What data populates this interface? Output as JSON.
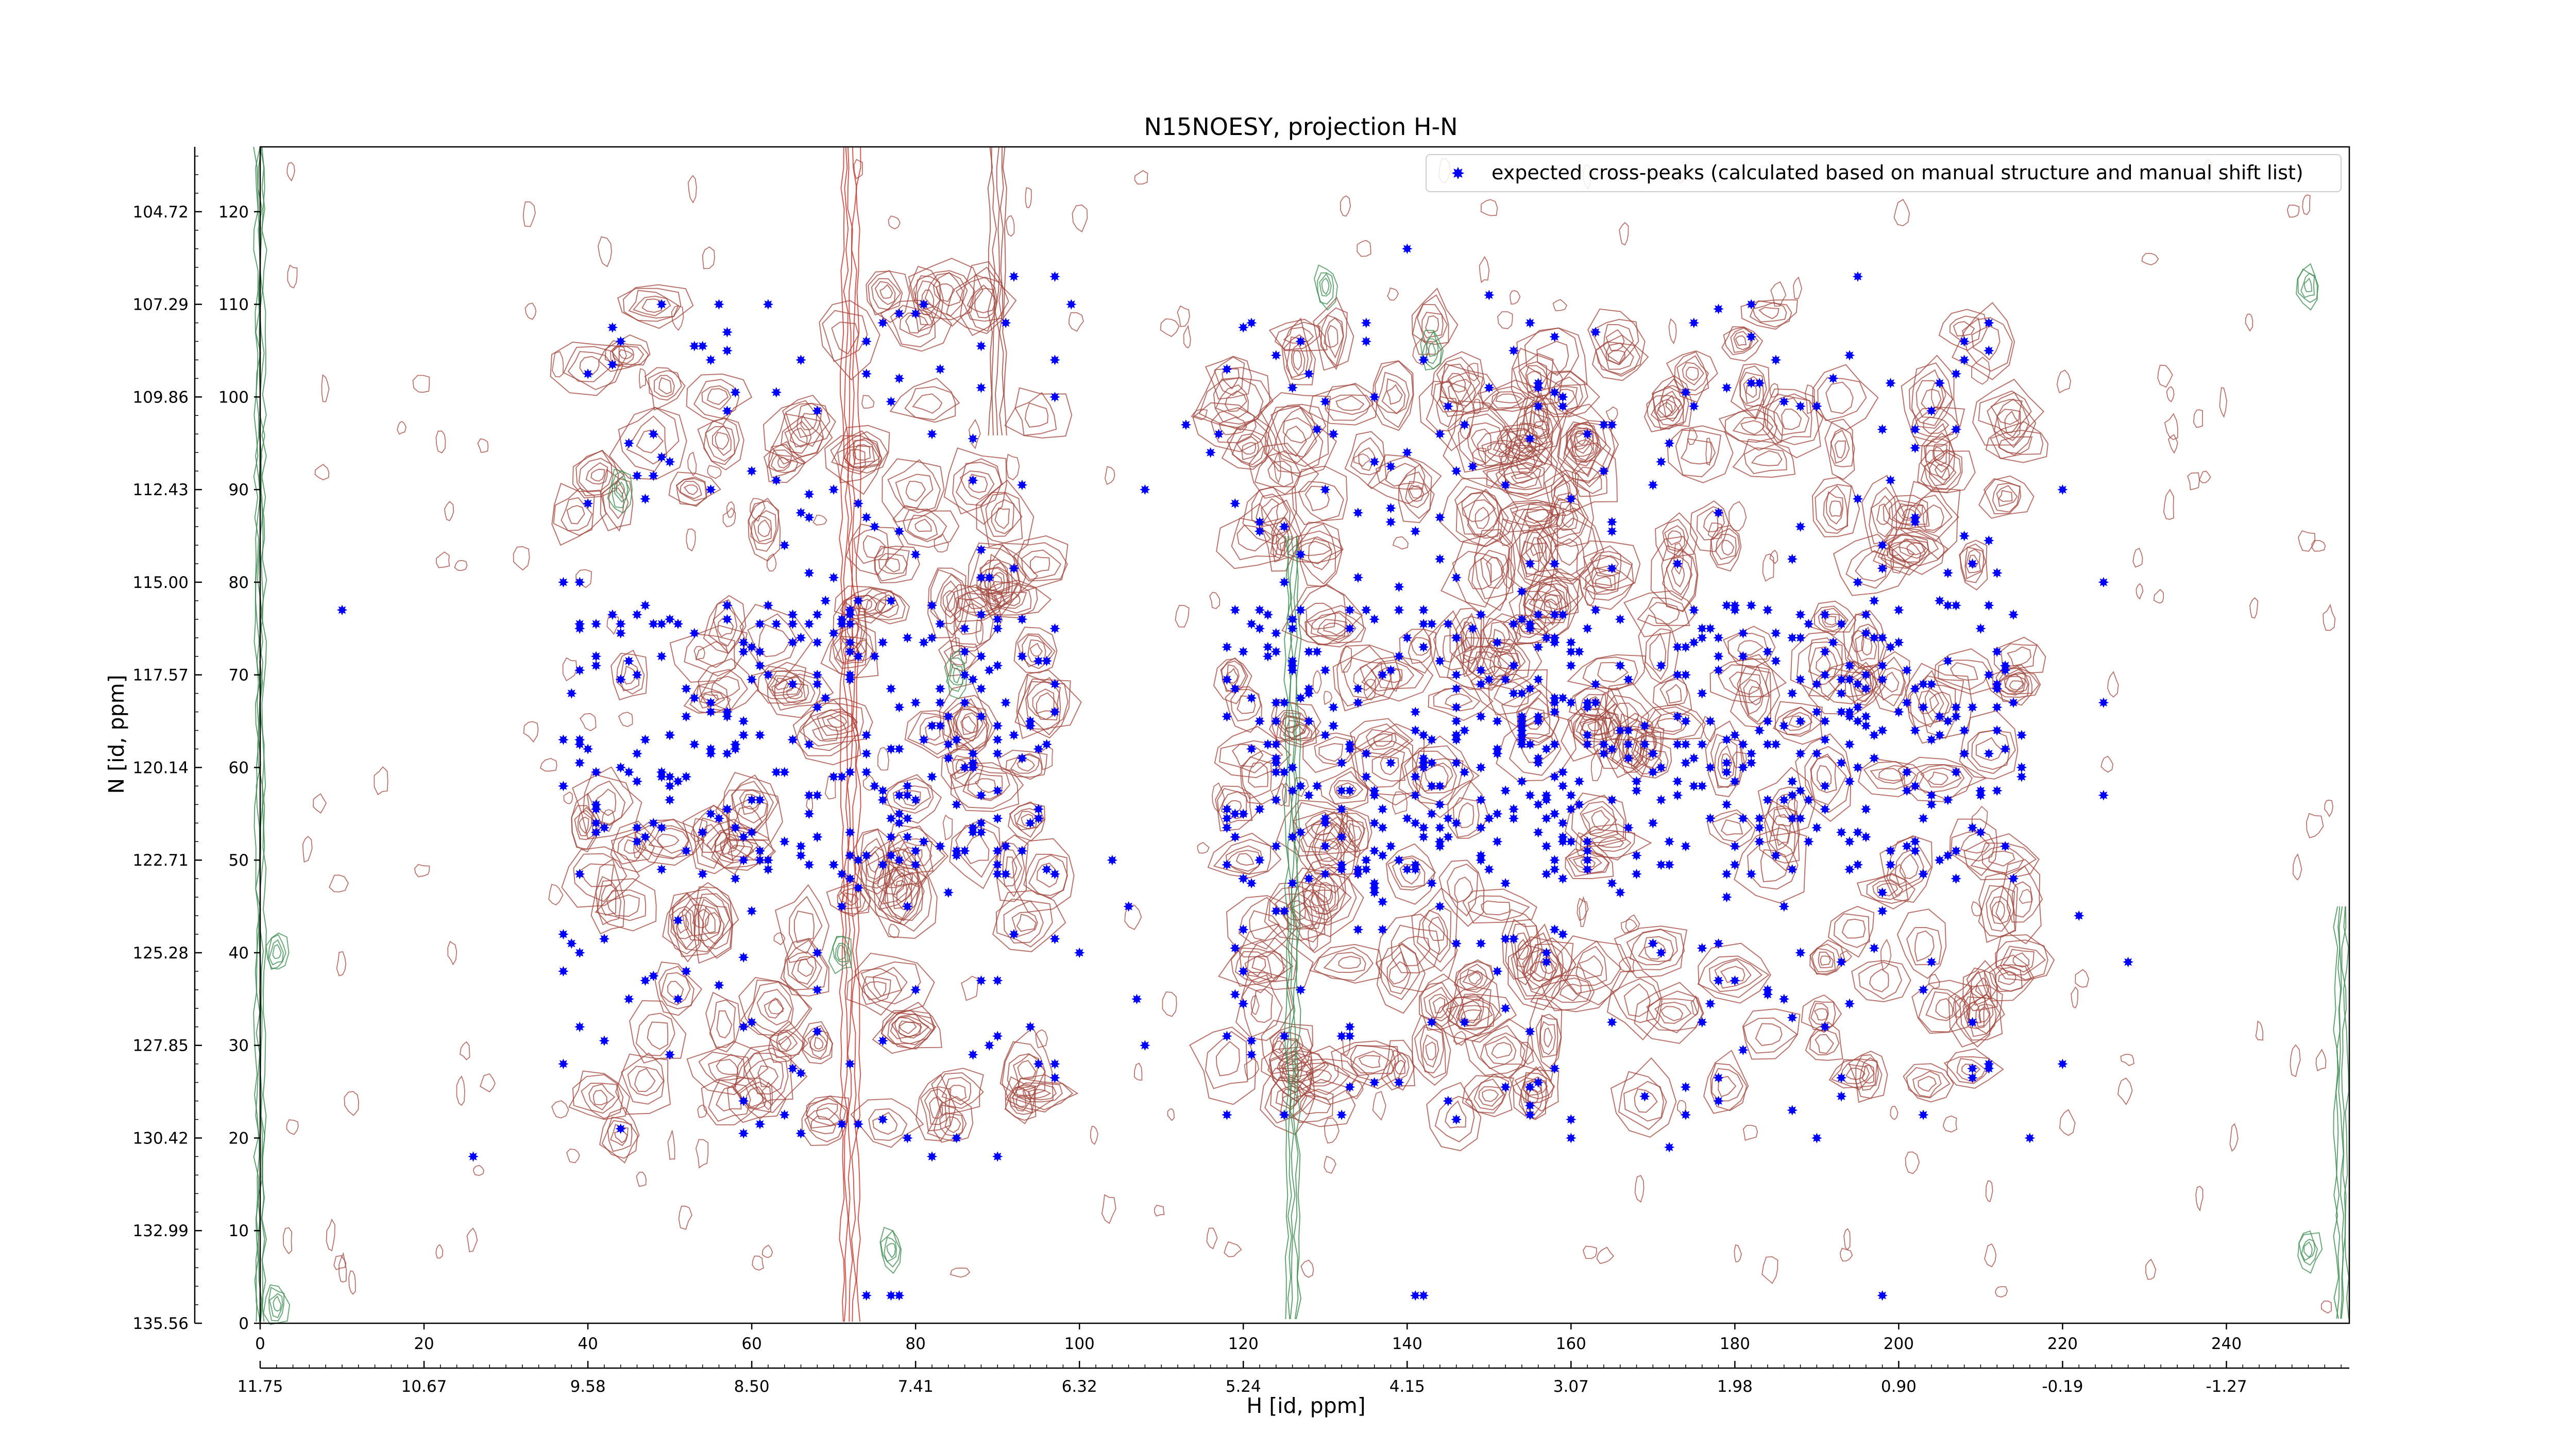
{
  "chart_data": {
    "type": "scatter",
    "title": "N15NOESY, projection H-N",
    "xlabel": "H [id, ppm]",
    "ylabel": "N [id, ppm]",
    "x_index_range": [
      0,
      255
    ],
    "y_index_range": [
      0,
      127
    ],
    "x_index_ticks": [
      "0",
      "20",
      "40",
      "60",
      "80",
      "100",
      "120",
      "140",
      "160",
      "180",
      "200",
      "220",
      "240"
    ],
    "y_index_ticks": [
      "0",
      "10",
      "20",
      "30",
      "40",
      "50",
      "60",
      "70",
      "80",
      "90",
      "100",
      "110",
      "120"
    ],
    "x_ppm_ticks": [
      "11.75",
      "10.67",
      "9.58",
      "8.50",
      "7.41",
      "6.32",
      "5.24",
      "4.15",
      "3.07",
      "1.98",
      "0.90",
      "-0.19",
      "-1.27"
    ],
    "y_ppm_ticks": [
      "135.56",
      "132.99",
      "130.42",
      "127.85",
      "125.28",
      "122.71",
      "120.14",
      "117.57",
      "115.00",
      "112.43",
      "109.86",
      "107.29",
      "104.72"
    ],
    "grid": false,
    "legend": {
      "placement": "top-right",
      "entries": [
        "expected cross-peaks (calculated based on manual structure and manual shift list)"
      ]
    },
    "colors": {
      "marker": "#0000ff",
      "contour_positive": "#a0463c",
      "contour_negative": "#3c8c50",
      "contour_strong": "#c83228"
    },
    "peak_clusters": [
      {
        "x_range": [
          38,
          98
        ],
        "y_range": [
          20,
          112
        ],
        "count": 340
      },
      {
        "x_range": [
          118,
          160
        ],
        "y_range": [
          22,
          108
        ],
        "count": 320
      },
      {
        "x_range": [
          155,
          215
        ],
        "y_range": [
          22,
          110
        ],
        "count": 360
      }
    ],
    "series": [
      {
        "name": "expected cross-peaks (calculated based on manual structure and manual shift list)",
        "points": [
          [
            10,
            77
          ],
          [
            26,
            18
          ],
          [
            37,
            80
          ],
          [
            37,
            63
          ],
          [
            37,
            58
          ],
          [
            37,
            42
          ],
          [
            37,
            38
          ],
          [
            37,
            28
          ],
          [
            44,
            106
          ],
          [
            45,
            95
          ],
          [
            48,
            96
          ],
          [
            49,
            72
          ],
          [
            50,
            29
          ],
          [
            51,
            35
          ],
          [
            56,
            110
          ],
          [
            57,
            107
          ],
          [
            59,
            24
          ],
          [
            62,
            110
          ],
          [
            63,
            91
          ],
          [
            64,
            84
          ],
          [
            66,
            104
          ],
          [
            68,
            36
          ],
          [
            70,
            90
          ],
          [
            72,
            28
          ],
          [
            74,
            106
          ],
          [
            74,
            3
          ],
          [
            76,
            108
          ],
          [
            77,
            3
          ],
          [
            78,
            3
          ],
          [
            79,
            20
          ],
          [
            80,
            36
          ],
          [
            81,
            110
          ],
          [
            82,
            18
          ],
          [
            85,
            20
          ],
          [
            87,
            91
          ],
          [
            90,
            18
          ],
          [
            91,
            108
          ],
          [
            92,
            113
          ],
          [
            95,
            28
          ],
          [
            96,
            49
          ],
          [
            97,
            113
          ],
          [
            99,
            110
          ],
          [
            100,
            40
          ],
          [
            104,
            50
          ],
          [
            106,
            45
          ],
          [
            107,
            35
          ],
          [
            108,
            30
          ],
          [
            108,
            90
          ],
          [
            113,
            97
          ],
          [
            116,
            94
          ],
          [
            117,
            96
          ],
          [
            121,
            108
          ],
          [
            130,
            90
          ],
          [
            140,
            116
          ],
          [
            141,
            3
          ],
          [
            142,
            3
          ],
          [
            145,
            99
          ],
          [
            147,
            97
          ],
          [
            150,
            111
          ],
          [
            155,
            108
          ],
          [
            160,
            20
          ],
          [
            163,
            107
          ],
          [
            170,
            41
          ],
          [
            172,
            19
          ],
          [
            175,
            108
          ],
          [
            182,
            110
          ],
          [
            188,
            40
          ],
          [
            190,
            20
          ],
          [
            195,
            113
          ],
          [
            198,
            3
          ],
          [
            208,
            104
          ],
          [
            211,
            108
          ],
          [
            216,
            20
          ],
          [
            220,
            28
          ],
          [
            222,
            44
          ],
          [
            225,
            80
          ],
          [
            225,
            67
          ],
          [
            225,
            57
          ],
          [
            228,
            39
          ],
          [
            220,
            90
          ]
        ]
      }
    ]
  }
}
